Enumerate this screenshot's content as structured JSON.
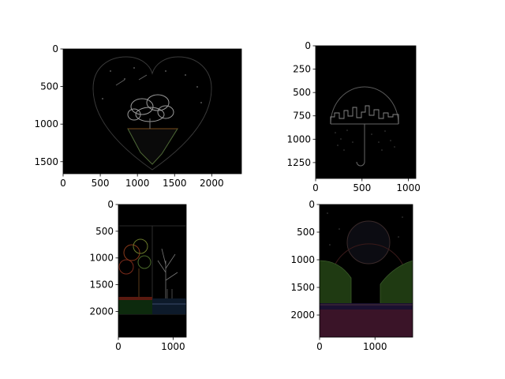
{
  "chart_data": [
    {
      "type": "image",
      "panel": "top-left",
      "xlim": [
        0,
        2400
      ],
      "ylim": [
        1660,
        0
      ],
      "xticks": [
        "0",
        "500",
        "1000",
        "1500",
        "2000"
      ],
      "yticks": [
        "0",
        "500",
        "1000",
        "1500"
      ],
      "content": "edge-detected heart with tree on floating island"
    },
    {
      "type": "image",
      "panel": "top-right",
      "xlim": [
        0,
        1080
      ],
      "ylim": [
        1420,
        0
      ],
      "xticks": [
        "0",
        "500",
        "1000"
      ],
      "yticks": [
        "0",
        "250",
        "500",
        "750",
        "1000",
        "1250"
      ],
      "content": "edge-detected umbrella dome with city skyline"
    },
    {
      "type": "image",
      "panel": "bottom-left",
      "xlim": [
        0,
        1240
      ],
      "ylim": [
        2480,
        0
      ],
      "xticks": [
        "0",
        "1000"
      ],
      "yticks": [
        "0",
        "500",
        "1000",
        "1500",
        "2000"
      ],
      "content": "edge-detected split tree scene"
    },
    {
      "type": "image",
      "panel": "bottom-right",
      "xlim": [
        0,
        1680
      ],
      "ylim": [
        2400,
        0
      ],
      "xticks": [
        "0",
        "1000"
      ],
      "yticks": [
        "0",
        "500",
        "1000",
        "1500",
        "2000"
      ],
      "content": "edge-detected moon over hills scene"
    }
  ],
  "colors": {
    "image_bg": "#000000",
    "axis": "#000000",
    "page_bg": "#ffffff"
  }
}
